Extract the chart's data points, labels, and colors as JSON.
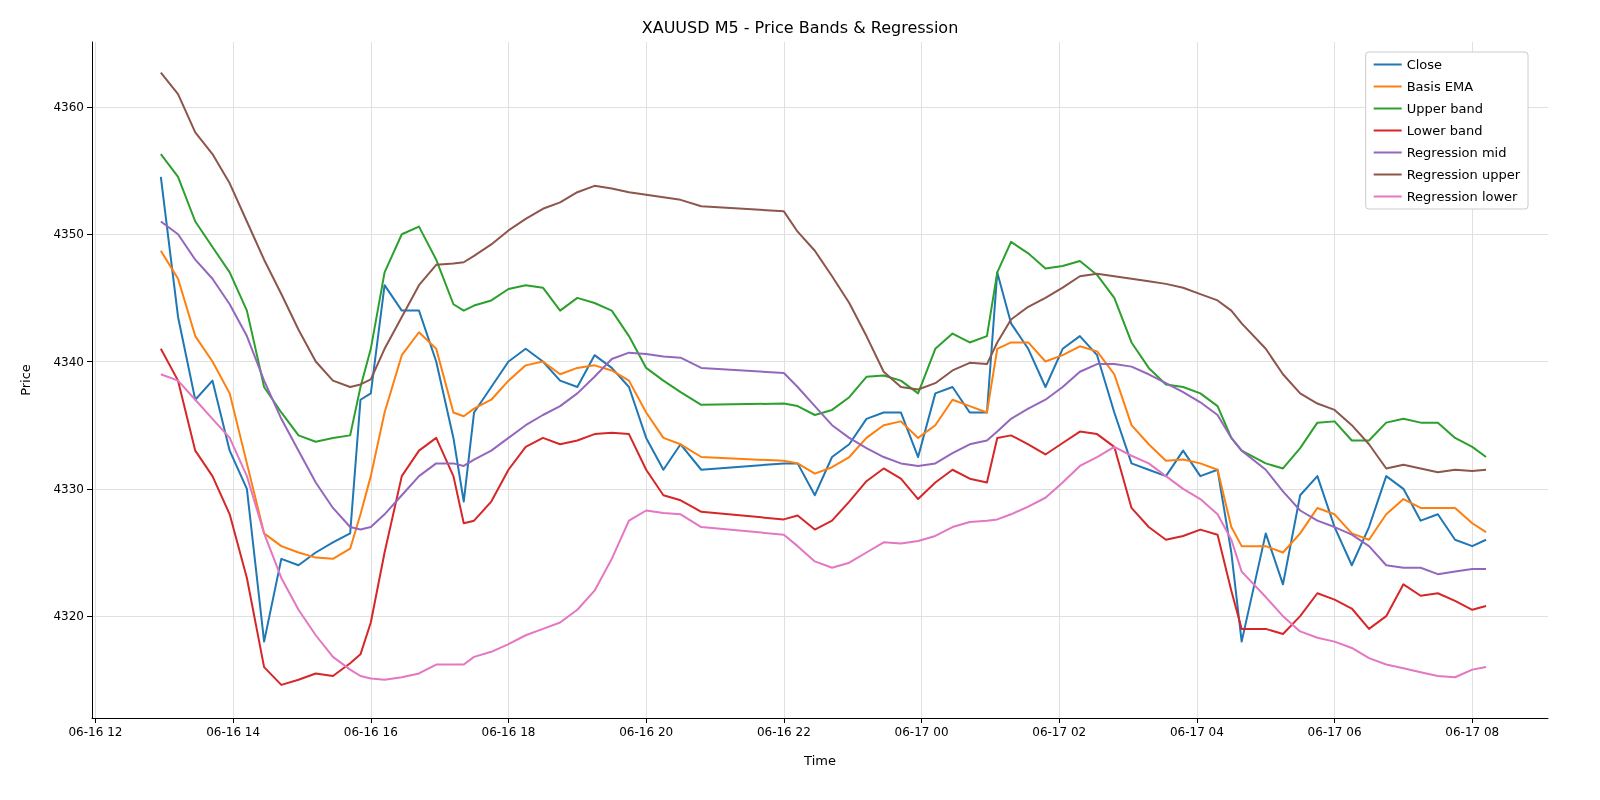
{
  "chart_data": {
    "type": "line",
    "title": "XAUUSD M5 - Price Bands & Regression",
    "xlabel": "Time",
    "ylabel": "Price",
    "x": [
      "--06-16T12:57",
      "--06-16T13:12",
      "--06-16T13:27",
      "--06-16T13:42",
      "--06-16T13:57",
      "--06-16T14:12",
      "--06-16T14:27",
      "--06-16T14:42",
      "--06-16T14:57",
      "--06-16T15:12",
      "--06-16T15:27",
      "--06-16T15:42",
      "--06-16T15:51",
      "--06-16T16:00",
      "--06-16T16:12",
      "--06-16T16:27",
      "--06-16T16:42",
      "--06-16T16:57",
      "--06-16T17:12",
      "--06-16T17:21",
      "--06-16T17:30",
      "--06-16T17:45",
      "--06-16T18:00",
      "--06-16T18:15",
      "--06-16T18:30",
      "--06-16T18:45",
      "--06-16T19:00",
      "--06-16T19:15",
      "--06-16T19:30",
      "--06-16T19:45",
      "--06-16T20:00",
      "--06-16T20:15",
      "--06-16T20:30",
      "--06-16T20:48",
      "--06-16T22:00",
      "--06-16T22:12",
      "--06-16T22:27",
      "--06-16T22:42",
      "--06-16T22:57",
      "--06-16T23:12",
      "--06-16T23:27",
      "--06-16T23:42",
      "--06-16T23:57",
      "--06-17T00:12",
      "--06-17T00:27",
      "--06-17T00:42",
      "--06-17T00:57",
      "--06-17T01:06",
      "--06-17T01:18",
      "--06-17T01:33",
      "--06-17T01:48",
      "--06-17T02:03",
      "--06-17T02:18",
      "--06-17T02:33",
      "--06-17T02:48",
      "--06-17T03:03",
      "--06-17T03:18",
      "--06-17T03:33",
      "--06-17T03:48",
      "--06-17T04:03",
      "--06-17T04:18",
      "--06-17T04:30",
      "--06-17T04:39",
      "--06-17T05:00",
      "--06-17T05:15",
      "--06-17T05:30",
      "--06-17T05:45",
      "--06-17T06:00",
      "--06-17T06:15",
      "--06-17T06:30",
      "--06-17T06:45",
      "--06-17T07:00",
      "--06-17T07:15",
      "--06-17T07:30",
      "--06-17T07:45",
      "--06-17T08:00",
      "--06-17T08:12"
    ],
    "series": [
      {
        "name": "Close",
        "color": "#1f77b4",
        "values": [
          4354.5,
          4343.5,
          4337,
          4338.5,
          4333,
          4330,
          4318,
          4324.5,
          4324,
          4325,
          4325.8,
          4326.5,
          4337,
          4337.5,
          4346,
          4344,
          4344,
          4340,
          4334,
          4329,
          4336,
          4338,
          4340,
          4341,
          4340,
          4338.5,
          4338,
          4340.5,
          4339.5,
          4338,
          4334,
          4331.5,
          4333.5,
          4331.5,
          4332,
          4332,
          4329.5,
          4332.5,
          4333.5,
          4335.5,
          4336,
          4336,
          4332.5,
          4337.5,
          4338,
          4336,
          4336,
          4347,
          4343,
          4341,
          4338,
          4341,
          4342,
          4340.5,
          4336,
          4332,
          4331.5,
          4331,
          4333,
          4331,
          4331.5,
          4325,
          4318,
          4326.5,
          4322.5,
          4329.5,
          4331,
          4327,
          4324,
          4327,
          4331,
          4330,
          4327.5,
          4328,
          4326,
          4325.5,
          4326
        ]
      },
      {
        "name": "Basis EMA",
        "color": "#ff7f0e",
        "values": [
          4348.7,
          4346.5,
          4342,
          4340,
          4337.5,
          4332,
          4326.5,
          4325.5,
          4325,
          4324.6,
          4324.5,
          4325.3,
          4328,
          4331,
          4336,
          4340.5,
          4342.3,
          4341,
          4336,
          4335.7,
          4336.3,
          4337,
          4338.5,
          4339.7,
          4340,
          4339,
          4339.5,
          4339.7,
          4339.3,
          4338.5,
          4336,
          4334,
          4333.5,
          4332.5,
          4332.2,
          4332,
          4331.2,
          4331.7,
          4332.5,
          4334,
          4335,
          4335.3,
          4334,
          4335,
          4337,
          4336.5,
          4336,
          4341,
          4341.5,
          4341.5,
          4340,
          4340.5,
          4341.2,
          4340.8,
          4339,
          4335,
          4333.5,
          4332.2,
          4332.3,
          4332,
          4331.5,
          4327,
          4325.5,
          4325.5,
          4325,
          4326.5,
          4328.5,
          4328,
          4326.5,
          4326,
          4328,
          4329.2,
          4328.5,
          4328.5,
          4328.5,
          4327.3,
          4326.6
        ]
      },
      {
        "name": "Upper band",
        "color": "#2ca02c",
        "values": [
          4356.3,
          4354.5,
          4351,
          4349,
          4347,
          4344,
          4338,
          4336,
          4334.2,
          4333.7,
          4334,
          4334.2,
          4338,
          4341,
          4347,
          4350,
          4350.6,
          4348,
          4344.5,
          4344,
          4344.4,
          4344.8,
          4345.7,
          4346,
          4345.8,
          4344,
          4345,
          4344.6,
          4344,
          4342,
          4339.5,
          4338.5,
          4337.6,
          4336.6,
          4336.7,
          4336.5,
          4335.8,
          4336.2,
          4337.2,
          4338.8,
          4338.9,
          4338.5,
          4337.5,
          4341,
          4342.2,
          4341.5,
          4342,
          4347,
          4349.4,
          4348.5,
          4347.3,
          4347.5,
          4347.9,
          4346.8,
          4345,
          4341.5,
          4339.5,
          4338.2,
          4338,
          4337.5,
          4336.5,
          4334,
          4333,
          4332,
          4331.6,
          4333.2,
          4335.2,
          4335.3,
          4333.8,
          4333.8,
          4335.2,
          4335.5,
          4335.2,
          4335.2,
          4334,
          4333.3,
          4332.5
        ]
      },
      {
        "name": "Lower band",
        "color": "#d62728",
        "values": [
          4341,
          4338.5,
          4333,
          4331,
          4328,
          4323,
          4316,
          4314.6,
          4315,
          4315.5,
          4315.3,
          4316.3,
          4317,
          4319.5,
          4325,
          4331,
          4333,
          4334,
          4331,
          4327.3,
          4327.5,
          4329,
          4331.5,
          4333.3,
          4334,
          4333.5,
          4333.8,
          4334.3,
          4334.4,
          4334.3,
          4331.5,
          4329.5,
          4329.1,
          4328.2,
          4327.6,
          4327.9,
          4326.8,
          4327.5,
          4329,
          4330.6,
          4331.6,
          4330.8,
          4329.2,
          4330.5,
          4331.5,
          4330.8,
          4330.5,
          4334,
          4334.2,
          4333.5,
          4332.7,
          4333.6,
          4334.5,
          4334.3,
          4333.3,
          4328.5,
          4327,
          4326,
          4326.3,
          4326.8,
          4326.4,
          4322,
          4319,
          4319,
          4318.6,
          4320,
          4321.8,
          4321.3,
          4320.6,
          4319,
          4320,
          4322.5,
          4321.6,
          4321.8,
          4321.2,
          4320.5,
          4320.8
        ]
      },
      {
        "name": "Regression mid",
        "color": "#9467bd",
        "values": [
          4351,
          4350,
          4348,
          4346.5,
          4344.5,
          4342,
          4338.5,
          4335.5,
          4333,
          4330.5,
          4328.5,
          4327,
          4326.8,
          4327,
          4328,
          4329.5,
          4331,
          4332,
          4332,
          4331.8,
          4332.3,
          4333,
          4334,
          4335,
          4335.8,
          4336.5,
          4337.5,
          4338.8,
          4340.2,
          4340.7,
          4340.6,
          4340.4,
          4340.3,
          4339.5,
          4339.1,
          4338,
          4336.5,
          4335,
          4334,
          4333.2,
          4332.5,
          4332,
          4331.8,
          4332,
          4332.8,
          4333.5,
          4333.8,
          4334.5,
          4335.5,
          4336.3,
          4337,
          4338,
          4339.2,
          4339.8,
          4339.8,
          4339.6,
          4339,
          4338.3,
          4337.6,
          4336.8,
          4335.8,
          4334,
          4333,
          4331.5,
          4329.8,
          4328.3,
          4327.5,
          4327,
          4326.4,
          4325.5,
          4324,
          4323.8,
          4323.8,
          4323.3,
          4323.5,
          4323.7,
          4323.7
        ]
      },
      {
        "name": "Regression upper",
        "color": "#8c564b",
        "values": [
          4362.7,
          4361,
          4358,
          4356.3,
          4354,
          4351,
          4348,
          4345.3,
          4342.5,
          4340,
          4338.5,
          4338,
          4338.2,
          4338.6,
          4341,
          4343.5,
          4346,
          4347.6,
          4347.7,
          4347.8,
          4348.3,
          4349.2,
          4350.3,
          4351.2,
          4352,
          4352.5,
          4353.3,
          4353.8,
          4353.6,
          4353.3,
          4353.1,
          4352.9,
          4352.7,
          4352.2,
          4351.8,
          4350.2,
          4348.7,
          4346.7,
          4344.6,
          4342,
          4339.2,
          4338,
          4337.8,
          4338.3,
          4339.3,
          4339.9,
          4339.8,
          4341.5,
          4343.3,
          4344.3,
          4345,
          4345.8,
          4346.7,
          4346.9,
          4346.7,
          4346.5,
          4346.3,
          4346.1,
          4345.8,
          4345.3,
          4344.8,
          4344,
          4343,
          4341,
          4339,
          4337.5,
          4336.7,
          4336.2,
          4335,
          4333.5,
          4331.6,
          4331.9,
          4331.6,
          4331.3,
          4331.5,
          4331.4,
          4331.5
        ]
      },
      {
        "name": "Regression lower",
        "color": "#e377c2",
        "values": [
          4339,
          4338.5,
          4337,
          4335.5,
          4334,
          4331,
          4326.5,
          4323,
          4320.5,
          4318.5,
          4316.8,
          4315.8,
          4315.3,
          4315.1,
          4315,
          4315.2,
          4315.5,
          4316.2,
          4316.2,
          4316.2,
          4316.8,
          4317.2,
          4317.8,
          4318.5,
          4319,
          4319.5,
          4320.5,
          4322,
          4324.5,
          4327.5,
          4328.3,
          4328.1,
          4328,
          4327,
          4326.4,
          4325.5,
          4324.3,
          4323.8,
          4324.2,
          4325,
          4325.8,
          4325.7,
          4325.9,
          4326.3,
          4327,
          4327.4,
          4327.5,
          4327.6,
          4328,
          4328.6,
          4329.3,
          4330.5,
          4331.8,
          4332.5,
          4333.3,
          4332.6,
          4332,
          4331,
          4330,
          4329.2,
          4328,
          4326,
          4323.5,
          4321.5,
          4320,
          4318.8,
          4318.3,
          4318,
          4317.5,
          4316.7,
          4316.2,
          4315.9,
          4315.6,
          4315.3,
          4315.2,
          4315.8,
          4316
        ]
      }
    ],
    "xlim": [
      "--06-16T11:57",
      "--06-17T09:06"
    ],
    "xticks": [
      {
        "value": "--06-16T12:00",
        "label": "06-16 12"
      },
      {
        "value": "--06-16T14:00",
        "label": "06-16 14"
      },
      {
        "value": "--06-16T16:00",
        "label": "06-16 16"
      },
      {
        "value": "--06-16T18:00",
        "label": "06-16 18"
      },
      {
        "value": "--06-16T20:00",
        "label": "06-16 20"
      },
      {
        "value": "--06-16T22:00",
        "label": "06-16 22"
      },
      {
        "value": "--06-17T00:00",
        "label": "06-17 00"
      },
      {
        "value": "--06-17T02:00",
        "label": "06-17 02"
      },
      {
        "value": "--06-17T04:00",
        "label": "06-17 04"
      },
      {
        "value": "--06-17T06:00",
        "label": "06-17 06"
      },
      {
        "value": "--06-17T08:00",
        "label": "06-17 08"
      }
    ],
    "ylim": [
      4312,
      4365.1
    ],
    "yticks": [
      4320,
      4330,
      4340,
      4350,
      4360
    ],
    "grid": true,
    "legend": "top right",
    "marker": "none",
    "line_style": "solid"
  }
}
